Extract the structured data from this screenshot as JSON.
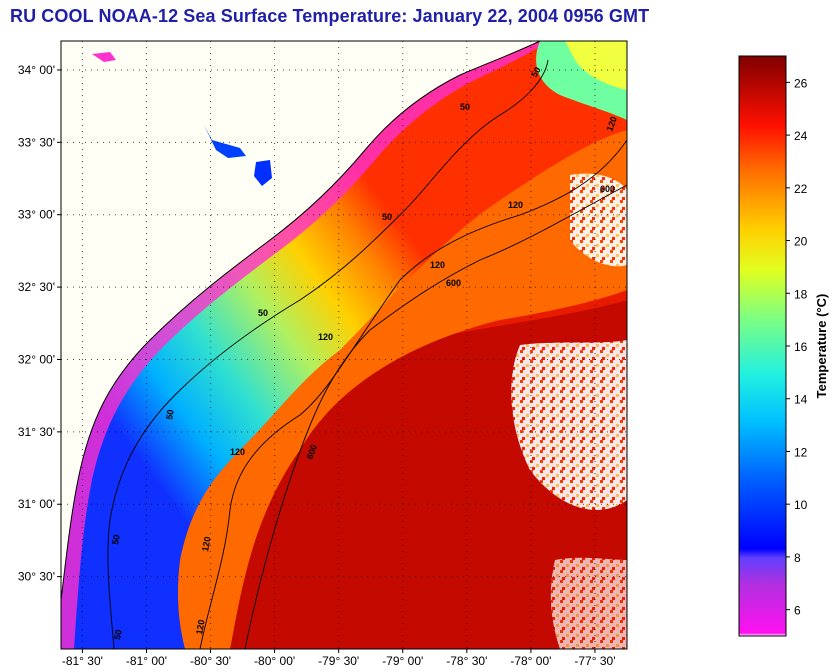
{
  "title": "RU COOL  NOAA-12  Sea Surface Temperature:  January 22, 2004 0956 GMT",
  "map": {
    "lon_range": [
      -81.667,
      -77.25
    ],
    "lat_range": [
      30.0,
      34.2
    ],
    "lat_ticks": [
      {
        "value": 34.0,
        "label": "34° 00'"
      },
      {
        "value": 33.5,
        "label": "33° 30'"
      },
      {
        "value": 33.0,
        "label": "33° 00'"
      },
      {
        "value": 32.5,
        "label": "32° 30'"
      },
      {
        "value": 32.0,
        "label": "32° 00'"
      },
      {
        "value": 31.5,
        "label": "31° 30'"
      },
      {
        "value": 31.0,
        "label": "31° 00'"
      },
      {
        "value": 30.5,
        "label": "30° 30'"
      }
    ],
    "lon_ticks": [
      {
        "value": -81.5,
        "label": "-81° 30'"
      },
      {
        "value": -81.0,
        "label": "-81° 00'"
      },
      {
        "value": -80.5,
        "label": "-80° 30'"
      },
      {
        "value": -80.0,
        "label": "-80° 00'"
      },
      {
        "value": -79.5,
        "label": "-79° 30'"
      },
      {
        "value": -79.0,
        "label": "-79° 00'"
      },
      {
        "value": -78.5,
        "label": "-78° 30'"
      },
      {
        "value": -78.0,
        "label": "-78° 00'"
      },
      {
        "value": -77.5,
        "label": "-77° 30'"
      }
    ],
    "contour_labels": [
      "50",
      "50",
      "50",
      "50",
      "50",
      "50",
      "50",
      "120",
      "120",
      "120",
      "120",
      "120",
      "120",
      "120",
      "600",
      "600",
      "600"
    ]
  },
  "colorbar": {
    "title": "Temperature (°C)",
    "range": [
      5,
      27
    ],
    "ticks": [
      "6",
      "8",
      "10",
      "12",
      "14",
      "16",
      "18",
      "20",
      "22",
      "24",
      "26"
    ]
  },
  "colors": {
    "title": "#1f1fa8",
    "land": "#fffff5",
    "cold": "#ff00ff",
    "warm": "#7f0000"
  }
}
